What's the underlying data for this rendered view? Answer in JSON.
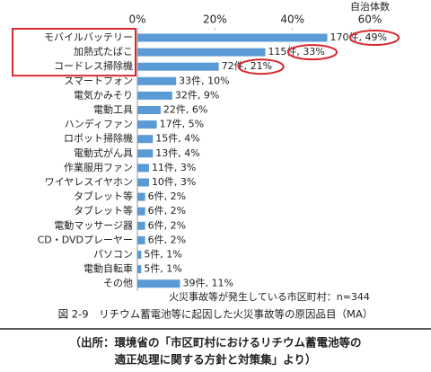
{
  "chart_data": {
    "type": "hbar",
    "x_axis_title": "自治体数",
    "categories": [
      "モバイルバッテリー",
      "加熱式たばこ",
      "コードレス掃除機",
      "スマートフォン",
      "電気かみそり",
      "電動工具",
      "ハンディファン",
      "ロボット掃除機",
      "電動式がん具",
      "作業服用ファン",
      "ワイヤレスイヤホン",
      "タブレット等",
      "タブレット等",
      "電動マッサージ器",
      "CD・DVDプレーヤー",
      "パソコン",
      "電動自転車",
      "その他"
    ],
    "values": [
      49,
      33,
      21,
      10,
      9,
      6,
      5,
      4,
      4,
      3,
      3,
      2,
      2,
      2,
      2,
      1,
      1,
      11
    ],
    "value_labels": [
      "170件, 49%",
      "115件, 33%",
      "72件, 21%",
      "33件, 10%",
      "32件, 9%",
      "22件, 6%",
      "17件, 5%",
      "15件, 4%",
      "13件, 4%",
      "11件, 3%",
      "10件, 3%",
      "6件, 2%",
      "6件, 2%",
      "6件, 2%",
      "6件, 2%",
      "5件, 1%",
      "5件, 1%",
      "39件, 11%"
    ],
    "color": "#5b9bd5",
    "highlight_color": "#d9282f",
    "highlighted": [
      0,
      1,
      2
    ],
    "xlim": [
      0,
      60
    ],
    "xticks": [
      {
        "value": 0,
        "label": "0%"
      },
      {
        "value": 20,
        "label": "20%"
      },
      {
        "value": 40,
        "label": "40%"
      },
      {
        "value": 60,
        "label": "60%"
      }
    ],
    "note": "火災事故等が発生している市区町村：n=344",
    "caption": "図 2-9　リチウム蓄電池等に起因した火災事故等の原因品目（MA）",
    "source": [
      "（出所：環境省の「市区町村におけるリチウム蓄電池等の",
      "適正処理に関する方針と対策集」より）"
    ]
  }
}
